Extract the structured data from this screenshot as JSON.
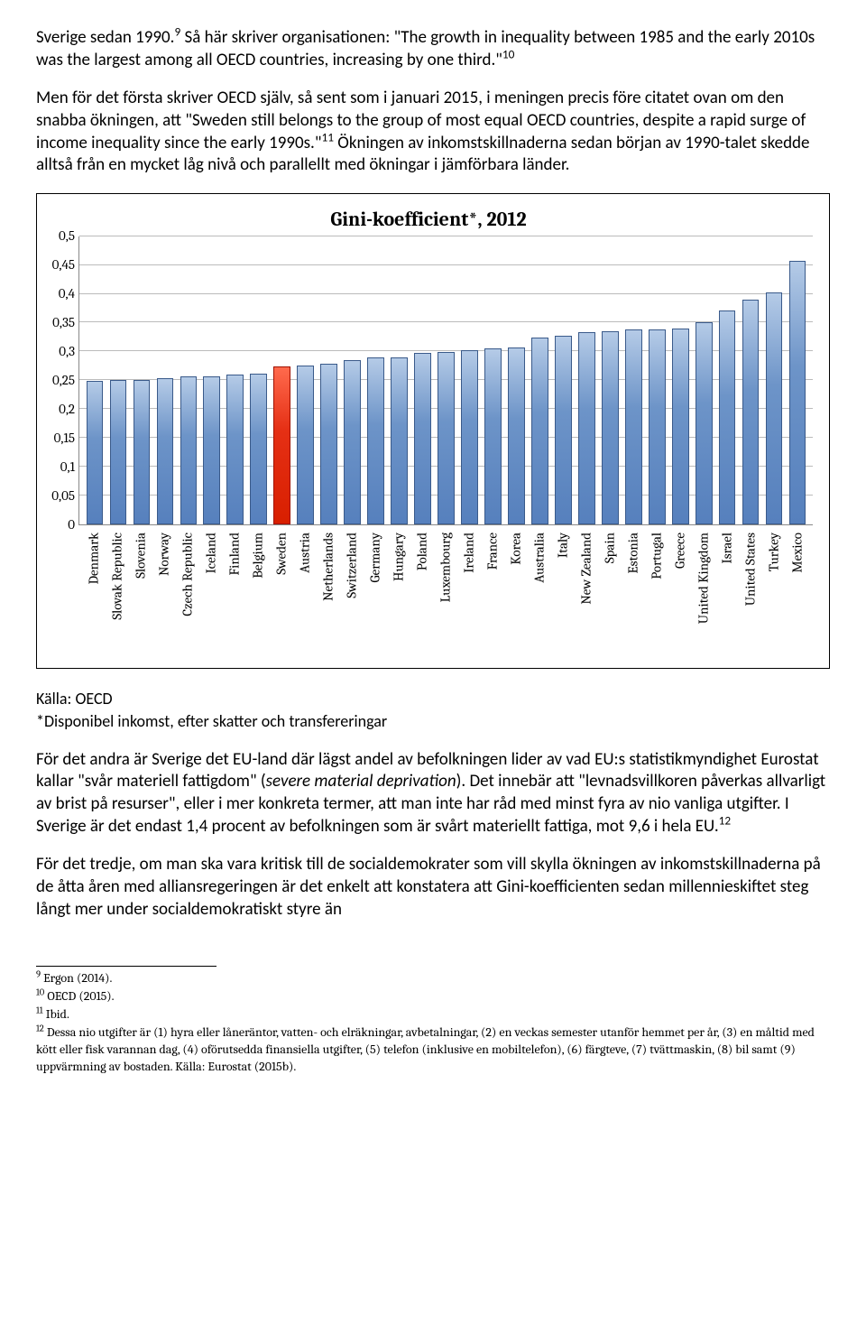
{
  "paragraphs": {
    "p1a": "Sverige sedan 1990.",
    "p1sup": "9",
    "p1b": " Så här skriver organisationen: \"The growth in inequality between 1985 and the early 2010s was the largest among all OECD countries, increasing by one third.\"",
    "p1sup2": "10",
    "p2a": "Men för det första skriver OECD själv, så sent som i januari 2015, i meningen precis före citatet ovan om den snabba ökningen, att \"Sweden still belongs to the group of most equal OECD countries, despite a rapid surge of income inequality since the early 1990s.\"",
    "p2sup": "11",
    "p2b": " Ökningen av inkomstskillnaderna sedan början av 1990-talet skedde alltså från en mycket låg nivå och parallellt med ökningar i jämförbara länder.",
    "p3a": "För det andra är Sverige det EU-land där lägst andel av befolkningen lider av vad EU:s statistikmyndighet Eurostat kallar \"svår materiell fattigdom\" (",
    "p3i": "severe material deprivation",
    "p3b": "). Det innebär att \"levnadsvillkoren påverkas allvarligt av brist på resurser\", eller i mer konkreta termer, att man inte har råd med minst fyra av nio vanliga utgifter. I Sverige är det endast 1,4 procent av befolkningen som är svårt materiellt fattiga, mot 9,6 i hela EU.",
    "p3sup": "12",
    "p4": "För det tredje, om man ska vara kritisk till de socialdemokrater som vill skylla ökningen av inkomstskillnaderna på de åtta åren med alliansregeringen är det enkelt att konstatera att Gini-koefficienten sedan millennieskiftet steg långt mer under socialdemokratiskt styre än"
  },
  "chart": {
    "title": "Gini-koefficient*, 2012",
    "type": "bar",
    "ylim": [
      0,
      0.5
    ],
    "ytick_step": 0.05,
    "yticks": [
      "0",
      "0,05",
      "0,1",
      "0,15",
      "0,2",
      "0,25",
      "0,3",
      "0,35",
      "0,4",
      "0,45",
      "0,5"
    ],
    "bar_color": "#6d94c8",
    "bar_border": "#3a5a8a",
    "highlight_color": "#e53015",
    "highlight_border": "#a01000",
    "highlight_country": "Sweden",
    "grid_color": "#bbbbbb",
    "background_color": "#ffffff",
    "label_fontfamily": "Cambria",
    "label_fontsize": 15,
    "title_fontsize": 22,
    "series": [
      {
        "label": "Denmark",
        "value": 0.249
      },
      {
        "label": "Slovak Republic",
        "value": 0.25
      },
      {
        "label": "Slovenia",
        "value": 0.25
      },
      {
        "label": "Norway",
        "value": 0.253
      },
      {
        "label": "Czech Republic",
        "value": 0.256
      },
      {
        "label": "Iceland",
        "value": 0.257
      },
      {
        "label": "Finland",
        "value": 0.26
      },
      {
        "label": "Belgium",
        "value": 0.262
      },
      {
        "label": "Sweden",
        "value": 0.274
      },
      {
        "label": "Austria",
        "value": 0.276
      },
      {
        "label": "Netherlands",
        "value": 0.278
      },
      {
        "label": "Switzerland",
        "value": 0.285
      },
      {
        "label": "Germany",
        "value": 0.289
      },
      {
        "label": "Hungary",
        "value": 0.289
      },
      {
        "label": "Poland",
        "value": 0.298
      },
      {
        "label": "Luxembourg",
        "value": 0.299
      },
      {
        "label": "Ireland",
        "value": 0.302
      },
      {
        "label": "France",
        "value": 0.306
      },
      {
        "label": "Korea",
        "value": 0.307
      },
      {
        "label": "Australia",
        "value": 0.324
      },
      {
        "label": "Italy",
        "value": 0.327
      },
      {
        "label": "New Zealand",
        "value": 0.333
      },
      {
        "label": "Spain",
        "value": 0.335
      },
      {
        "label": "Estonia",
        "value": 0.338
      },
      {
        "label": "Portugal",
        "value": 0.338
      },
      {
        "label": "Greece",
        "value": 0.34
      },
      {
        "label": "United Kingdom",
        "value": 0.351
      },
      {
        "label": "Israel",
        "value": 0.371
      },
      {
        "label": "United States",
        "value": 0.39
      },
      {
        "label": "Turkey",
        "value": 0.402
      },
      {
        "label": "Mexico",
        "value": 0.457
      }
    ],
    "source_line1": "Källa: OECD",
    "source_line2": "*Disponibel inkomst, efter skatter och transfereringar"
  },
  "footnotes": {
    "f9": "Ergon (2014).",
    "f10": "OECD (2015).",
    "f11": "Ibid.",
    "f12": "Dessa nio utgifter är (1) hyra eller låneräntor, vatten- och elräkningar, avbetalningar, (2) en veckas semester utanför hemmet per år, (3) en måltid med kött eller fisk varannan dag, (4) oförutsedda finansiella utgifter, (5) telefon (inklusive en mobiltelefon), (6) färgteve, (7) tvättmaskin, (8) bil samt (9) uppvärmning av bostaden. Källa: Eurostat (2015b)."
  }
}
